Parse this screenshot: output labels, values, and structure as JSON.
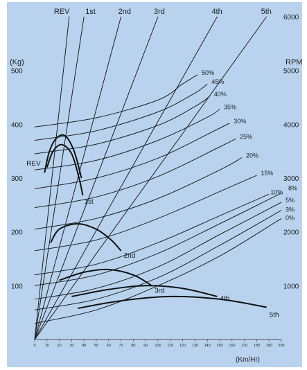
{
  "chart_data": {
    "type": "line",
    "title": "",
    "xlabel": "(Km/Hr)",
    "left_axis_label": "(Kg)",
    "right_axis_label": "RPM",
    "x_ticks": [
      "0",
      "10",
      "20",
      "30",
      "40",
      "50",
      "60",
      "70",
      "80",
      "90",
      "100",
      "110",
      "120",
      "130",
      "140",
      "150",
      "160",
      "170",
      "180",
      "190",
      "200"
    ],
    "x_range": [
      0,
      200
    ],
    "left_ticks": [
      "100",
      "200",
      "300",
      "400",
      "500"
    ],
    "left_range": [
      0,
      600
    ],
    "right_ticks": [
      "1000",
      "2000",
      "3000",
      "4000",
      "5000",
      "6000"
    ],
    "right_range": [
      0,
      6000
    ],
    "gear_lines": [
      {
        "name": "REV",
        "x_at_6000": 28
      },
      {
        "name": "1st",
        "x_at_6000": 40
      },
      {
        "name": "2nd",
        "x_at_6000": 70
      },
      {
        "name": "3rd",
        "x_at_6000": 100
      },
      {
        "name": "4th",
        "x_at_6000": 148
      },
      {
        "name": "5th",
        "x_at_6000": 188
      }
    ],
    "resistance_curves": [
      {
        "name": "0%",
        "points": [
          [
            0,
            30
          ],
          [
            50,
            55
          ],
          [
            100,
            100
          ],
          [
            150,
            155
          ],
          [
            200,
            225
          ]
        ]
      },
      {
        "name": "3%",
        "points": [
          [
            0,
            55
          ],
          [
            50,
            75
          ],
          [
            100,
            115
          ],
          [
            150,
            175
          ],
          [
            200,
            240
          ]
        ]
      },
      {
        "name": "5%",
        "points": [
          [
            0,
            75
          ],
          [
            50,
            95
          ],
          [
            100,
            135
          ],
          [
            150,
            195
          ],
          [
            200,
            255
          ]
        ]
      },
      {
        "name": "8%",
        "points": [
          [
            0,
            100
          ],
          [
            50,
            120
          ],
          [
            100,
            160
          ],
          [
            150,
            215
          ],
          [
            200,
            272
          ]
        ]
      },
      {
        "name": "10%",
        "points": [
          [
            0,
            120
          ],
          [
            50,
            140
          ],
          [
            100,
            180
          ],
          [
            150,
            230
          ],
          [
            190,
            270
          ]
        ]
      },
      {
        "name": "15%",
        "points": [
          [
            0,
            165
          ],
          [
            50,
            185
          ],
          [
            100,
            225
          ],
          [
            150,
            275
          ],
          [
            180,
            305
          ]
        ]
      },
      {
        "name": "20%",
        "points": [
          [
            0,
            205
          ],
          [
            50,
            225
          ],
          [
            100,
            262
          ],
          [
            150,
            315
          ],
          [
            168,
            338
          ]
        ]
      },
      {
        "name": "25%",
        "points": [
          [
            0,
            245
          ],
          [
            50,
            265
          ],
          [
            100,
            303
          ],
          [
            150,
            358
          ],
          [
            163,
            373
          ]
        ]
      },
      {
        "name": "30%",
        "points": [
          [
            0,
            280
          ],
          [
            50,
            300
          ],
          [
            100,
            337
          ],
          [
            145,
            387
          ],
          [
            158,
            402
          ]
        ]
      },
      {
        "name": "35%",
        "points": [
          [
            0,
            315
          ],
          [
            50,
            333
          ],
          [
            100,
            370
          ],
          [
            140,
            413
          ],
          [
            150,
            428
          ]
        ]
      },
      {
        "name": "40%",
        "points": [
          [
            0,
            345
          ],
          [
            50,
            363
          ],
          [
            100,
            398
          ],
          [
            130,
            433
          ],
          [
            142,
            452
          ]
        ]
      },
      {
        "name": "45%",
        "points": [
          [
            0,
            370
          ],
          [
            50,
            388
          ],
          [
            100,
            423
          ],
          [
            130,
            458
          ],
          [
            140,
            475
          ]
        ]
      },
      {
        "name": "50%",
        "points": [
          [
            0,
            395
          ],
          [
            50,
            412
          ],
          [
            100,
            445
          ],
          [
            120,
            475
          ],
          [
            132,
            492
          ]
        ]
      }
    ],
    "tractive_curves": [
      {
        "name": "REV",
        "points": [
          [
            8,
            310
          ],
          [
            12,
            350
          ],
          [
            18,
            375
          ],
          [
            25,
            378
          ],
          [
            32,
            350
          ],
          [
            38,
            300
          ]
        ]
      },
      {
        "name": "1st",
        "points": [
          [
            10,
            320
          ],
          [
            15,
            350
          ],
          [
            22,
            362
          ],
          [
            30,
            345
          ],
          [
            36,
            300
          ],
          [
            39,
            268
          ]
        ]
      },
      {
        "name": "2nd",
        "points": [
          [
            13,
            180
          ],
          [
            20,
            205
          ],
          [
            35,
            215
          ],
          [
            50,
            205
          ],
          [
            62,
            185
          ],
          [
            70,
            165
          ]
        ]
      },
      {
        "name": "3rd",
        "points": [
          [
            20,
            110
          ],
          [
            40,
            125
          ],
          [
            60,
            130
          ],
          [
            80,
            120
          ],
          [
            95,
            100
          ]
        ]
      },
      {
        "name": "4th",
        "points": [
          [
            30,
            80
          ],
          [
            60,
            93
          ],
          [
            90,
            100
          ],
          [
            120,
            95
          ],
          [
            148,
            80
          ]
        ]
      },
      {
        "name": "5th",
        "points": [
          [
            35,
            58
          ],
          [
            70,
            72
          ],
          [
            110,
            80
          ],
          [
            150,
            75
          ],
          [
            188,
            60
          ]
        ]
      }
    ]
  }
}
